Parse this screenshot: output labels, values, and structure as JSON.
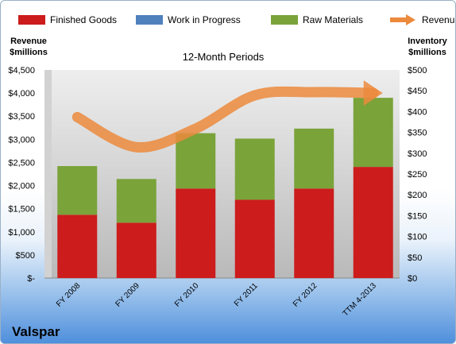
{
  "chart_data": {
    "type": "bar",
    "title": "12-Month Periods",
    "company": "Valspar",
    "left_axis_label": [
      "Revenue",
      "$millions"
    ],
    "right_axis_label": [
      "Inventory",
      "$millions"
    ],
    "categories": [
      "FY 2008",
      "FY 2009",
      "FY 2010",
      "FY 2011",
      "FY 2012",
      "TTM 4-2013"
    ],
    "left_ticks": [
      "$-",
      "$500",
      "$1,000",
      "$1,500",
      "$2,000",
      "$2,500",
      "$3,000",
      "$3,500",
      "$4,000",
      "$4,500"
    ],
    "right_ticks": [
      "$0",
      "$50",
      "$100",
      "$150",
      "$200",
      "$250",
      "$300",
      "$350",
      "$400",
      "$450",
      "$500"
    ],
    "left_ylim": [
      0,
      4500
    ],
    "right_ylim": [
      0,
      500
    ],
    "stacked": true,
    "legend_position": "top",
    "grid": false,
    "series": [
      {
        "name": "Finished Goods",
        "axis": "right",
        "kind": "bar",
        "color": "#cc1c1c",
        "values": [
          152,
          133,
          215,
          188,
          215,
          267
        ]
      },
      {
        "name": "Work in Progress",
        "axis": "right",
        "kind": "bar",
        "color": "#4f81bd",
        "values": [
          0,
          0,
          0,
          0,
          0,
          0
        ]
      },
      {
        "name": "Raw Materials",
        "axis": "right",
        "kind": "bar",
        "color": "#7aa33a",
        "values": [
          117,
          105,
          133,
          147,
          144,
          166
        ]
      },
      {
        "name": "Revenue",
        "axis": "left",
        "kind": "line",
        "color": "#ec8a3c",
        "values": [
          3480,
          2830,
          3230,
          3950,
          4020,
          4000
        ]
      }
    ]
  }
}
